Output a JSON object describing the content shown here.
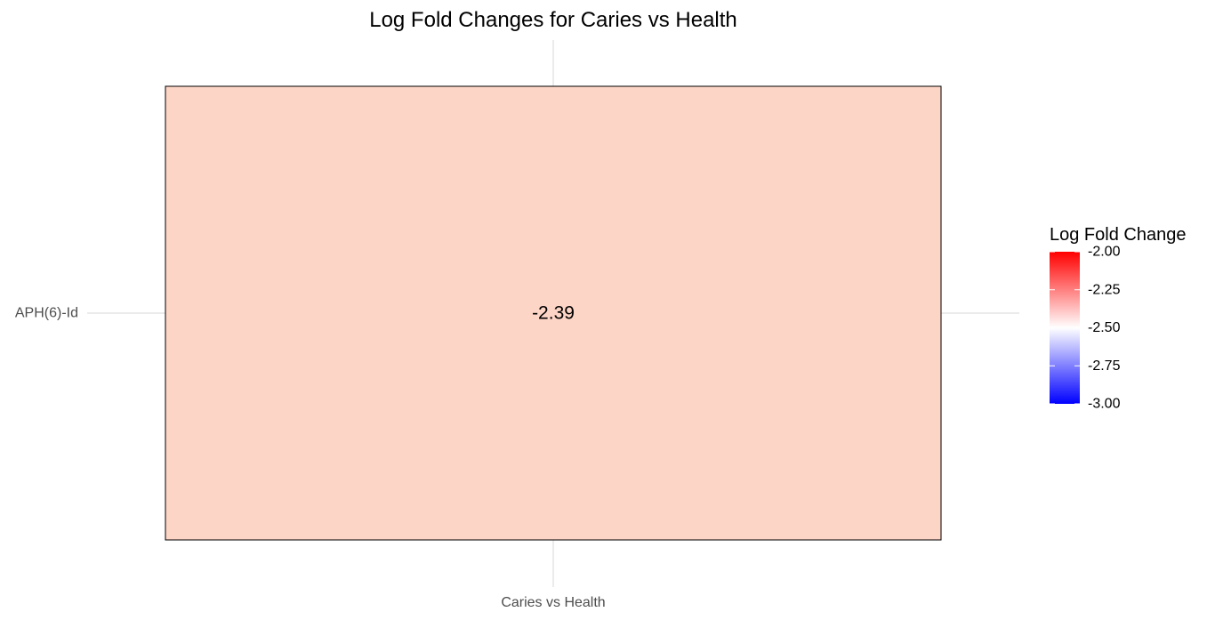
{
  "chart_data": {
    "type": "heatmap",
    "title": "Log Fold Changes for Caries vs Health",
    "xlabel": "",
    "ylabel": "",
    "x_categories": [
      "Caries vs Health"
    ],
    "y_categories": [
      "APH(6)-Id"
    ],
    "cells": [
      {
        "x": "Caries vs Health",
        "y": "APH(6)-Id",
        "value": -2.39,
        "label": "-2.39",
        "color": "#FDD5C6"
      }
    ],
    "grid": true,
    "legend": {
      "title": "Log Fold Change",
      "placement": "right",
      "range": [
        -3.0,
        -2.0
      ],
      "midpoint": -2.5,
      "colors": {
        "low": "#0000FF",
        "mid": "#FFFFFF",
        "high": "#FF0000"
      },
      "ticks": [
        -2.0,
        -2.25,
        -2.5,
        -2.75,
        -3.0
      ],
      "tick_labels": [
        "-2.00",
        "-2.25",
        "-2.50",
        "-2.75",
        "-3.00"
      ]
    }
  },
  "colors": {
    "gridline": "#EBEBEB",
    "tile_border": "#000000",
    "text": "#000000",
    "axis_text": "#4D4D4D",
    "background": "#FFFFFF"
  }
}
